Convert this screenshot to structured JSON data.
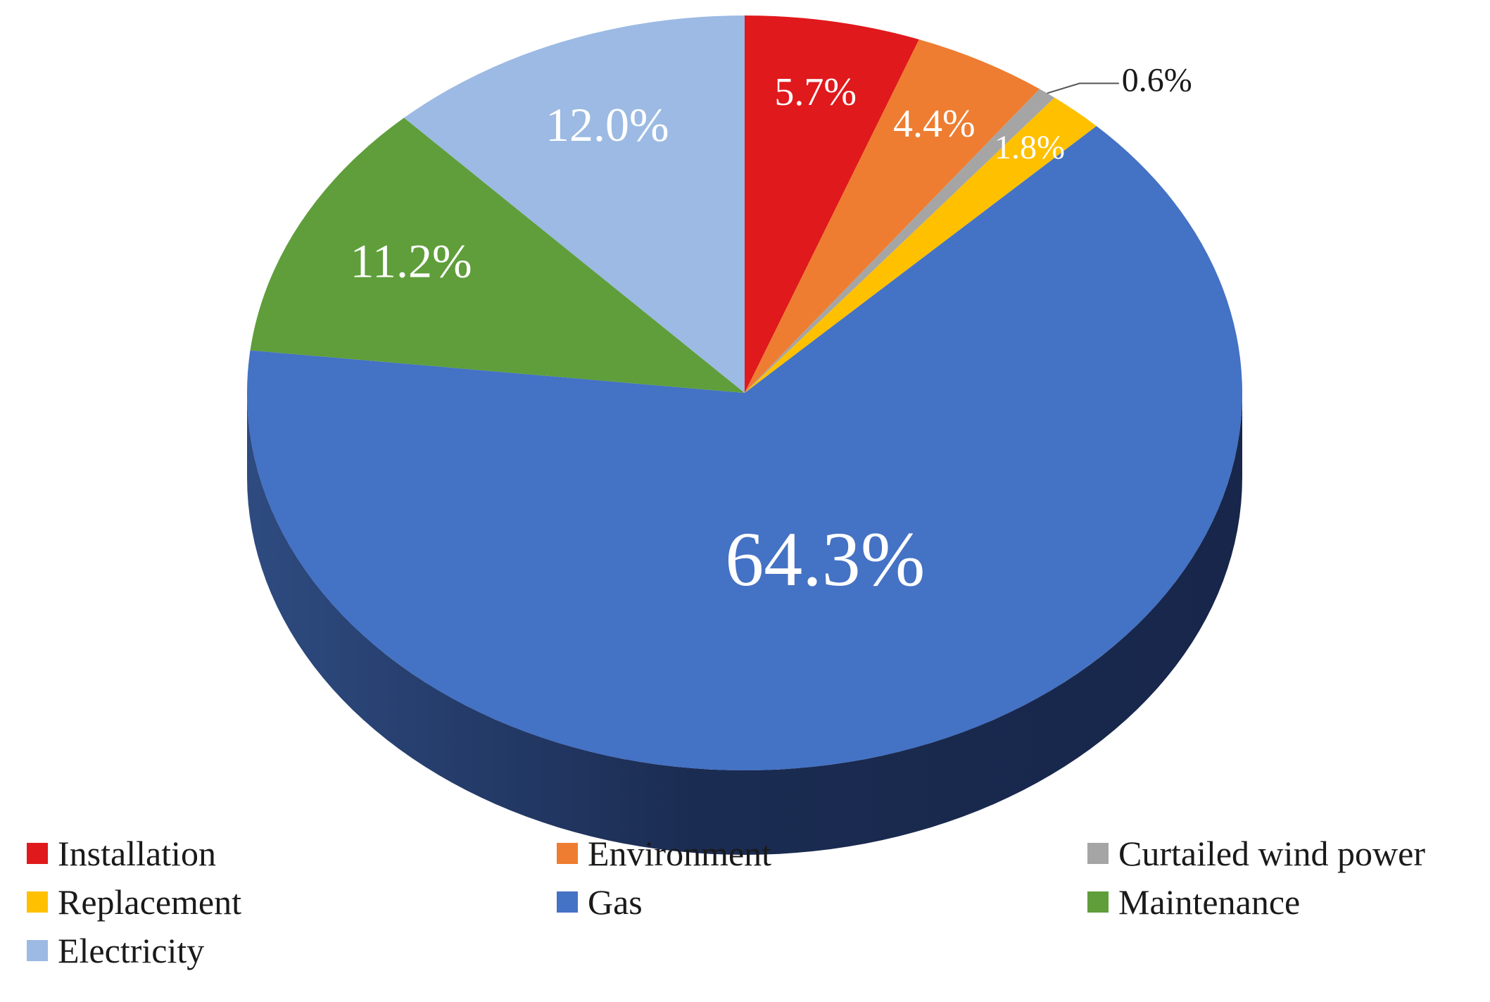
{
  "chart_data": {
    "type": "pie",
    "style": "3d",
    "title": "",
    "slices": [
      {
        "name": "Installation",
        "value": 5.7,
        "label": "5.7%",
        "color": "#e0191c",
        "label_color": "#ffffff"
      },
      {
        "name": "Environment",
        "value": 4.4,
        "label": "4.4%",
        "color": "#ee7d31",
        "label_color": "#ffffff"
      },
      {
        "name": "Curtailed wind power",
        "value": 0.6,
        "label": "0.6%",
        "color": "#a5a5a5",
        "label_color": "#1a1a1a"
      },
      {
        "name": "Replacement",
        "value": 1.8,
        "label": "1.8%",
        "color": "#ffc000",
        "label_color": "#ffffff"
      },
      {
        "name": "Gas",
        "value": 64.3,
        "label": "64.3%",
        "color": "#4472c4",
        "label_color": "#ffffff"
      },
      {
        "name": "Maintenance",
        "value": 11.2,
        "label": "11.2%",
        "color": "#5f9e3a",
        "label_color": "#ffffff"
      },
      {
        "name": "Electricity",
        "value": 12.0,
        "label": "12.0%",
        "color": "#9cbae3",
        "label_color": "#ffffff"
      }
    ],
    "legend": {
      "position": "bottom",
      "items": [
        "Installation",
        "Environment",
        "Curtailed wind power",
        "Replacement",
        "Gas",
        "Maintenance",
        "Electricity"
      ]
    },
    "side_color": "#1f3258"
  }
}
